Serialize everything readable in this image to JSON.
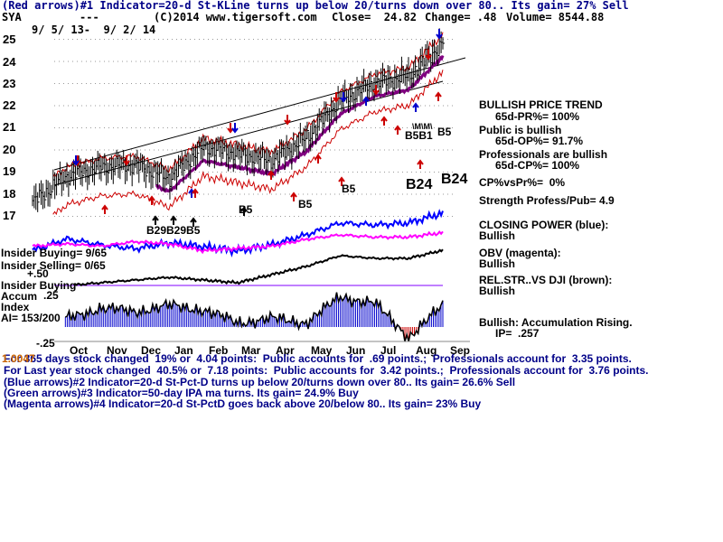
{
  "header": {
    "line1": "(Red arrows)#1 Indicator=20-d St-KLine turns up below 20/turns down over 80.. Its gain= 27% Sell",
    "symbol": "SYA",
    "dashes": "---",
    "copyright": "(C)2014 www.tigersoft.com",
    "close": "Close=  24.82",
    "change": "Change= .48",
    "volume": "Volume= 8544.88",
    "date_range": "9/ 5/ 13-  9/ 2/ 14"
  },
  "y_axis": {
    "ticks": [
      "25",
      "24",
      "23",
      "22",
      "21",
      "20",
      "19",
      "18",
      "17"
    ],
    "lower_ticks": [
      "+.50",
      ".25",
      "-.25"
    ]
  },
  "x_axis": {
    "months": [
      "Oct",
      "Nov",
      "Dec",
      "Jan",
      "Feb",
      "Mar",
      "Apr",
      "May",
      "Jun",
      "Jul",
      "Aug",
      "Sep"
    ]
  },
  "left_labels": {
    "insider_buying": "Insider Buying= 9/65",
    "insider_selling": "Insider Selling= 0/65",
    "insider_buying2": "Insider Buying",
    "accum": "Accum",
    "index": "Index",
    "ai": "AI= 153/200"
  },
  "chart_annotations": {
    "b5_a": "B5",
    "b5_b": "B5",
    "b5_c": "B5",
    "b5_d": "B5",
    "b24_a": "B24",
    "b24_b": "B24",
    "b29_cluster": "B29B29B5",
    "b5b1": "B5B1",
    "hatch": "\\M\\M\\",
    "b5_right": "B5"
  },
  "right_panel": {
    "trend_title": "BULLISH PRICE TREND",
    "pr": "65d-PR%= 100%",
    "public": "Public is bullish",
    "op": "65d-OP%= 91.7%",
    "pros": "Professionals are bullish",
    "cp": "65d-CP%= 100%",
    "cpvspr": "CP%vsPr%=  0%",
    "strength": "Strength Profess/Pub= 4.9",
    "closing_power": "CLOSING POWER (blue):",
    "cp_state": "Bullish",
    "obv": "OBV (magenta):",
    "obv_state": "Bullish",
    "relstr": "REL.STR..VS DJI (brown):",
    "relstr_state": "Bullish",
    "accum_rising": "Bullish: Accumulation Rising.",
    "ip": "IP=  .257"
  },
  "footer": {
    "line1": "For 365 days stock changed  19% or  4.04 points:  Public accounts for  .69 points.;  Professionals account for  3.35 points.",
    "line1_overlay": "1.0047",
    "line2": "For Last year stock changed  40.5% or  7.18 points:  Public accounts for  3.42 points.;  Professionals account for  3.76 points.",
    "line3": "(Blue arrows)#2 Indicator=20-d St-Pct-D turns up below 20/turns down over 80.. Its gain= 26.6% Sell",
    "line4": "(Green arrows)#3 Indicator=50-day IPA ma turns. Its gain= 24.9% Buy",
    "line5": "(Magenta arrows)#4 Indicator=20-d St-PctD goes back above 20/below 80.. Its gain= 23% Buy"
  },
  "colors": {
    "price_bar": "#000000",
    "ma_purple": "#800080",
    "band_red": "#cc0000",
    "closing_power": "#0000ff",
    "obv": "#ff00ff",
    "relstr": "#000000",
    "accum_pos": "#0000cc",
    "accum_neg": "#cc0000",
    "trend_line": "#000000",
    "text_blue": "#000088"
  },
  "chart_data": {
    "type": "line",
    "title": "SYA  9/5/13 - 9/2/14",
    "x": [
      "Sep",
      "Oct",
      "Nov",
      "Dec",
      "Jan",
      "Feb",
      "Mar",
      "Apr",
      "May",
      "Jun",
      "Jul",
      "Aug",
      "Sep"
    ],
    "ylim": [
      16.5,
      25.3
    ],
    "series": [
      {
        "name": "Price (close)",
        "values": [
          17.6,
          18.8,
          19.2,
          19.3,
          18.7,
          20.1,
          19.8,
          19.5,
          20.5,
          22.2,
          23.0,
          23.3,
          24.8
        ]
      },
      {
        "name": "Closing Power (blue)",
        "values": [
          17.2,
          17.8,
          17.5,
          17.3,
          17.6,
          17.4,
          17.2,
          17.5,
          18.0,
          18.6,
          18.5,
          18.6,
          19.1
        ]
      },
      {
        "name": "OBV (magenta)",
        "values": [
          16.8,
          16.9,
          16.8,
          17.0,
          16.9,
          16.6,
          16.7,
          16.8,
          17.1,
          17.3,
          17.2,
          17.2,
          17.4
        ]
      }
    ],
    "accumulation_index": {
      "ylim": [
        -0.25,
        0.5
      ],
      "values": [
        -0.05,
        0.1,
        0.22,
        0.18,
        0.25,
        0.2,
        0.05,
        0.1,
        0.05,
        0.35,
        0.28,
        -0.12,
        0.25
      ]
    }
  }
}
